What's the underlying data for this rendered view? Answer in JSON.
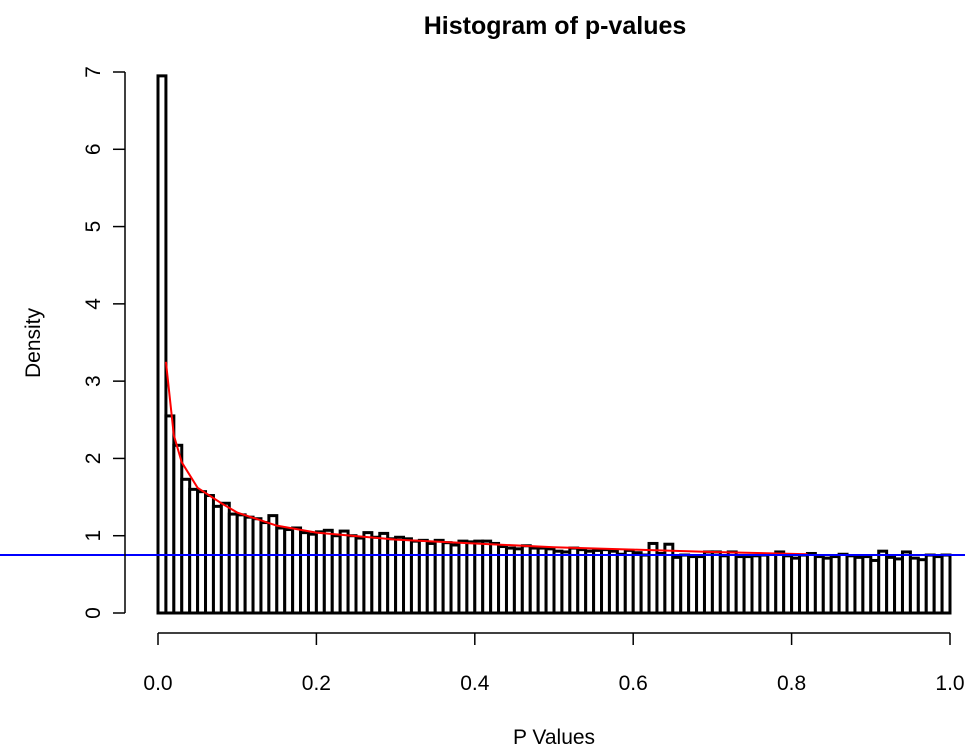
{
  "chart_data": {
    "type": "histogram",
    "title": "Histogram of p-values",
    "xlabel": "P Values",
    "ylabel": "Density",
    "bins": [
      0,
      0.01,
      0.02,
      0.03,
      0.04,
      0.05,
      0.06,
      0.07,
      0.08,
      0.09,
      0.1,
      0.11,
      0.12,
      0.13,
      0.14,
      0.15,
      0.16,
      0.17,
      0.18,
      0.19,
      0.2,
      0.21,
      0.22,
      0.23,
      0.24,
      0.25,
      0.26,
      0.27,
      0.28,
      0.29,
      0.3,
      0.31,
      0.32,
      0.33,
      0.34,
      0.35,
      0.36,
      0.37,
      0.38,
      0.39,
      0.4,
      0.41,
      0.42,
      0.43,
      0.44,
      0.45,
      0.46,
      0.47,
      0.48,
      0.49,
      0.5,
      0.51,
      0.52,
      0.53,
      0.54,
      0.55,
      0.56,
      0.57,
      0.58,
      0.59,
      0.6,
      0.61,
      0.62,
      0.63,
      0.64,
      0.65,
      0.66,
      0.67,
      0.68,
      0.69,
      0.7,
      0.71,
      0.72,
      0.73,
      0.74,
      0.75,
      0.76,
      0.77,
      0.78,
      0.79,
      0.8,
      0.81,
      0.82,
      0.83,
      0.84,
      0.85,
      0.86,
      0.87,
      0.88,
      0.89,
      0.9,
      0.91,
      0.92,
      0.93,
      0.94,
      0.95,
      0.96,
      0.97,
      0.98,
      0.99,
      1
    ],
    "values": [
      6.95,
      2.55,
      2.17,
      1.73,
      1.6,
      1.57,
      1.52,
      1.38,
      1.42,
      1.28,
      1.27,
      1.24,
      1.22,
      1.17,
      1.26,
      1.1,
      1.08,
      1.1,
      1.04,
      1.02,
      1.05,
      1.07,
      1.0,
      1.06,
      1.0,
      0.97,
      1.04,
      0.98,
      1.03,
      0.96,
      0.98,
      0.96,
      0.93,
      0.94,
      0.9,
      0.94,
      0.91,
      0.88,
      0.93,
      0.92,
      0.93,
      0.93,
      0.9,
      0.86,
      0.84,
      0.83,
      0.87,
      0.84,
      0.84,
      0.83,
      0.8,
      0.79,
      0.84,
      0.82,
      0.8,
      0.81,
      0.82,
      0.8,
      0.76,
      0.81,
      0.78,
      0.75,
      0.9,
      0.77,
      0.89,
      0.72,
      0.75,
      0.73,
      0.73,
      0.79,
      0.79,
      0.74,
      0.79,
      0.73,
      0.73,
      0.74,
      0.75,
      0.76,
      0.79,
      0.74,
      0.71,
      0.75,
      0.77,
      0.73,
      0.71,
      0.73,
      0.76,
      0.74,
      0.72,
      0.73,
      0.68,
      0.8,
      0.72,
      0.7,
      0.79,
      0.71,
      0.69,
      0.75,
      0.73,
      0.75
    ],
    "color": "#ffffff",
    "edgecolor": "#000000",
    "fit_line": {
      "x": [
        0.01,
        0.02,
        0.03,
        0.05,
        0.08,
        0.1,
        0.15,
        0.2,
        0.3,
        0.4,
        0.5,
        0.6,
        0.7,
        0.82
      ],
      "y": [
        3.25,
        2.3,
        1.95,
        1.62,
        1.42,
        1.3,
        1.13,
        1.04,
        0.95,
        0.9,
        0.85,
        0.82,
        0.79,
        0.76
      ],
      "color": "#ff0000"
    },
    "hline": {
      "value": 0.75,
      "color": "#0000ff"
    },
    "xlim": [
      0,
      1
    ],
    "ylim": [
      0,
      7
    ],
    "xticks": [
      {
        "value": 0,
        "label": "0.0"
      },
      0.2,
      0.4,
      0.6,
      0.8,
      {
        "value": 1,
        "label": "1.0"
      }
    ],
    "yticks": [
      0,
      1,
      2,
      3,
      4,
      5,
      6,
      7
    ]
  }
}
